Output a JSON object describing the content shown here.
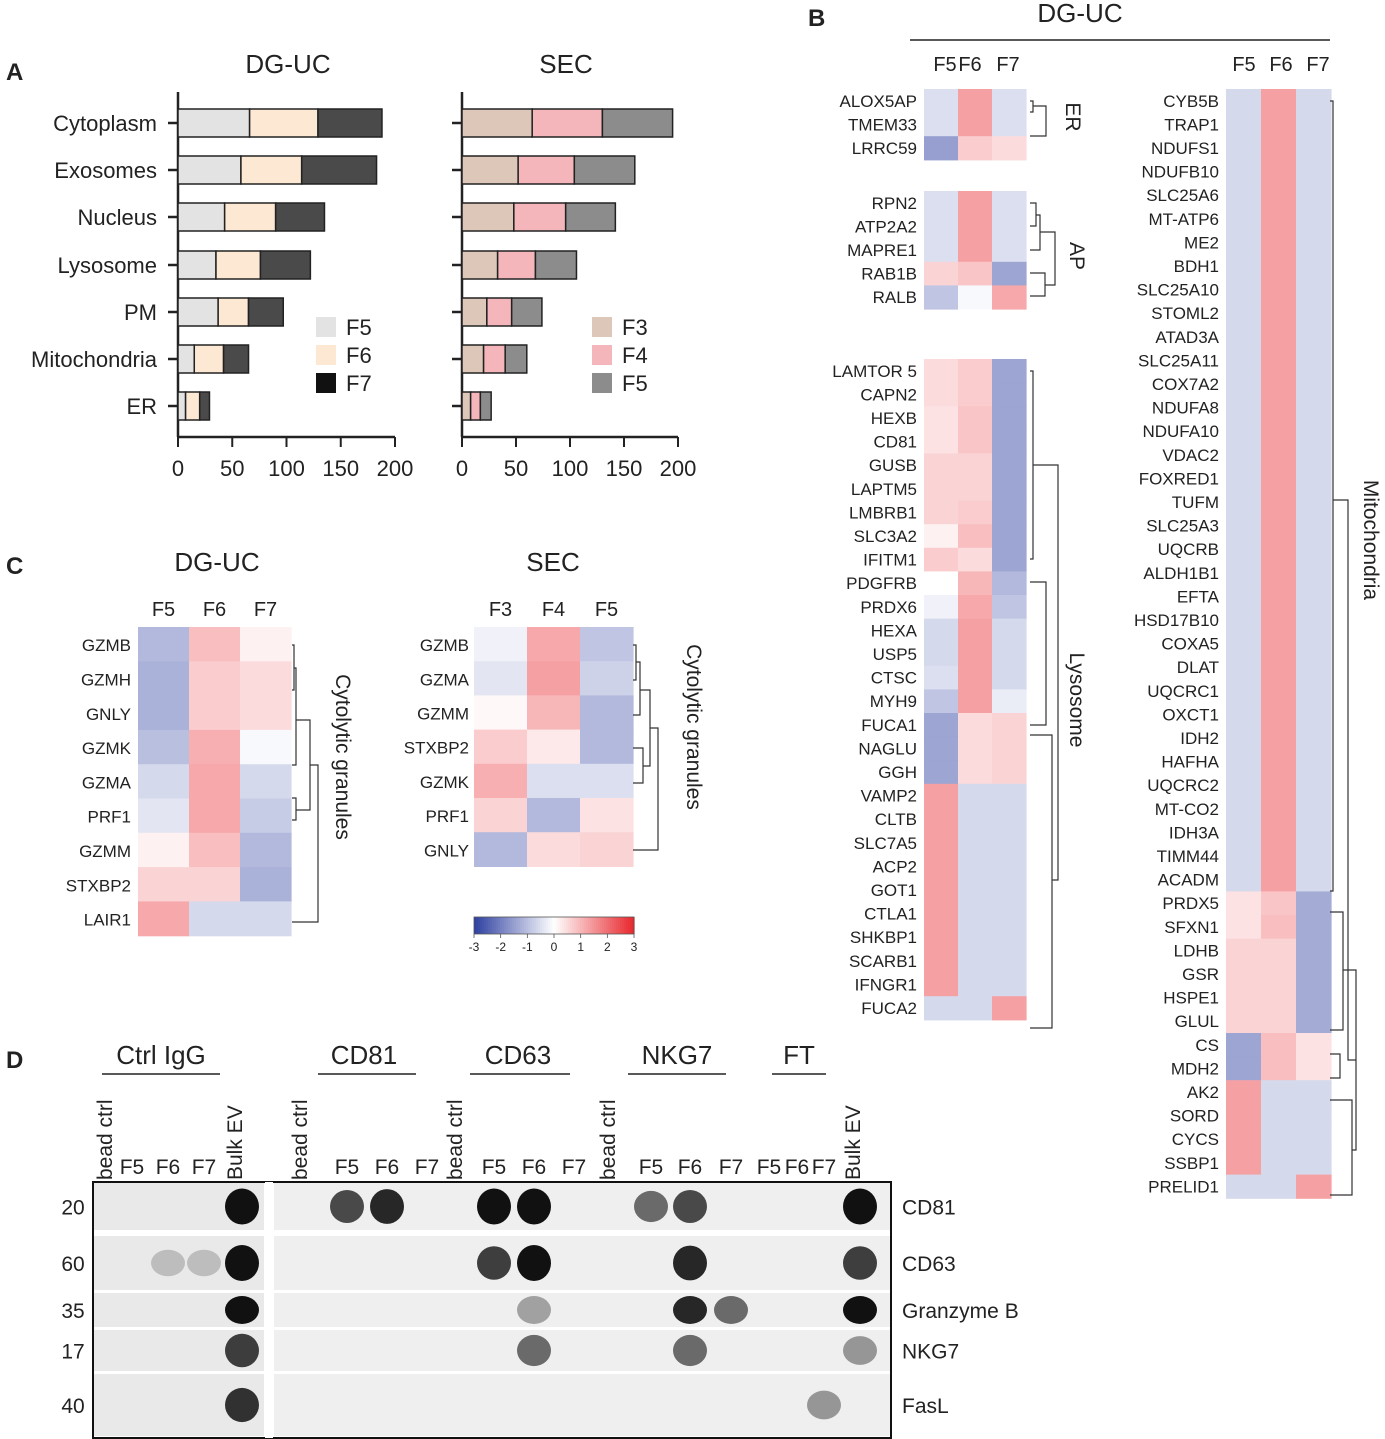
{
  "panel_letters": [
    "A",
    "B",
    "C",
    "D"
  ],
  "colors": {
    "DG-UC": {
      "F5": "#e3e3e3",
      "F6": "#fde8d3",
      "F7": "#4a4a4a"
    },
    "SEC": {
      "F3": "#dcc7b8",
      "F4": "#f4b6ba",
      "F5": "#8c8c8c"
    },
    "heat_low": "#2d3fa0",
    "heat_mid": "#ffffff",
    "heat_high": "#e8262c"
  },
  "panelB": {
    "title": "DG-UC",
    "columns": [
      "F5",
      "F6",
      "F7"
    ],
    "groups": [
      {
        "label": "ER",
        "genes": [
          "ALOX5AP",
          "TMEM33",
          "LRRC59"
        ],
        "values": [
          [
            -0.5,
            1.3,
            -0.5
          ],
          [
            -0.5,
            1.3,
            -0.5
          ],
          [
            -1.5,
            0.7,
            0.5
          ]
        ]
      },
      {
        "label": "AP",
        "genes": [
          "RPN2",
          "ATP2A2",
          "MAPRE1",
          "RAB1B",
          "RALB"
        ],
        "values": [
          [
            -0.5,
            1.3,
            -0.5
          ],
          [
            -0.5,
            1.3,
            -0.5
          ],
          [
            -0.5,
            1.3,
            -0.5
          ],
          [
            0.6,
            0.8,
            -1.4
          ],
          [
            -0.9,
            -0.1,
            1.2
          ]
        ]
      },
      {
        "label": "Lysosome",
        "genes": [
          "LAMTOR 5",
          "CAPN2",
          "HEXB",
          "CD81",
          "GUSB",
          "LAPTM5",
          "LMBRB1",
          "SLC3A2",
          "IFITM1",
          "PDGFRB",
          "PRDX6",
          "HEXA",
          "USP5",
          "CTSC",
          "MYH9",
          "FUCA1",
          "NAGLU",
          "GGH",
          "VAMP2",
          "CLTB",
          "SLC7A5",
          "ACP2",
          "GOT1",
          "CTLA1",
          "SHKBP1",
          "SCARB1",
          "IFNGR1",
          "FUCA2"
        ],
        "values": [
          [
            0.5,
            0.7,
            -1.4
          ],
          [
            0.5,
            0.7,
            -1.4
          ],
          [
            0.4,
            0.8,
            -1.4
          ],
          [
            0.4,
            0.8,
            -1.4
          ],
          [
            0.6,
            0.6,
            -1.4
          ],
          [
            0.6,
            0.6,
            -1.4
          ],
          [
            0.6,
            0.7,
            -1.4
          ],
          [
            0.2,
            0.9,
            -1.4
          ],
          [
            0.7,
            0.5,
            -1.4
          ],
          [
            0,
            1,
            -1.1
          ],
          [
            -0.2,
            1.2,
            -0.9
          ],
          [
            -0.6,
            1.3,
            -0.6
          ],
          [
            -0.6,
            1.3,
            -0.6
          ],
          [
            -0.5,
            1.3,
            -0.6
          ],
          [
            -0.9,
            1.3,
            -0.3
          ],
          [
            -1.4,
            0.5,
            0.6
          ],
          [
            -1.4,
            0.5,
            0.6
          ],
          [
            -1.4,
            0.5,
            0.6
          ],
          [
            1.3,
            -0.6,
            -0.6
          ],
          [
            1.3,
            -0.6,
            -0.6
          ],
          [
            1.3,
            -0.6,
            -0.6
          ],
          [
            1.3,
            -0.6,
            -0.6
          ],
          [
            1.3,
            -0.6,
            -0.6
          ],
          [
            1.3,
            -0.6,
            -0.6
          ],
          [
            1.3,
            -0.6,
            -0.6
          ],
          [
            1.3,
            -0.6,
            -0.6
          ],
          [
            1.3,
            -0.6,
            -0.6
          ],
          [
            -0.6,
            -0.6,
            1.3
          ]
        ]
      },
      {
        "label": "Mitochondria",
        "genes": [
          "CYB5B",
          "TRAP1",
          "NDUFS1",
          "NDUFB10",
          "SLC25A6",
          "MT-ATP6",
          "ME2",
          "BDH1",
          "SLC25A10",
          "STOML2",
          "ATAD3A",
          "SLC25A11",
          "COX7A2",
          "NDUFA8",
          "NDUFA10",
          "VDAC2",
          "FOXRED1",
          "TUFM",
          "SLC25A3",
          "UQCRB",
          "ALDH1B1",
          "EFTA",
          "HSD17B10",
          "COXA5",
          "DLAT",
          "UQCRC1",
          "OXCT1",
          "IDH2",
          "HAFHA",
          "UQCRC2",
          "MT-CO2",
          "IDH3A",
          "TIMM44",
          "ACADM",
          "PRDX5",
          "SFXN1",
          "LDHB",
          "GSR",
          "HSPE1",
          "GLUL",
          "CS",
          "MDH2",
          "AK2",
          "SORD",
          "CYCS",
          "SSBP1",
          "PRELID1"
        ],
        "values": [
          [
            -0.6,
            1.3,
            -0.6
          ],
          [
            -0.6,
            1.3,
            -0.6
          ],
          [
            -0.6,
            1.3,
            -0.6
          ],
          [
            -0.6,
            1.3,
            -0.6
          ],
          [
            -0.6,
            1.3,
            -0.6
          ],
          [
            -0.6,
            1.3,
            -0.6
          ],
          [
            -0.6,
            1.3,
            -0.6
          ],
          [
            -0.6,
            1.3,
            -0.6
          ],
          [
            -0.6,
            1.3,
            -0.6
          ],
          [
            -0.6,
            1.3,
            -0.6
          ],
          [
            -0.6,
            1.3,
            -0.6
          ],
          [
            -0.6,
            1.3,
            -0.6
          ],
          [
            -0.6,
            1.3,
            -0.6
          ],
          [
            -0.6,
            1.3,
            -0.6
          ],
          [
            -0.6,
            1.3,
            -0.6
          ],
          [
            -0.6,
            1.3,
            -0.6
          ],
          [
            -0.6,
            1.3,
            -0.6
          ],
          [
            -0.6,
            1.3,
            -0.6
          ],
          [
            -0.6,
            1.3,
            -0.6
          ],
          [
            -0.6,
            1.3,
            -0.6
          ],
          [
            -0.6,
            1.3,
            -0.6
          ],
          [
            -0.6,
            1.3,
            -0.6
          ],
          [
            -0.6,
            1.3,
            -0.6
          ],
          [
            -0.6,
            1.3,
            -0.6
          ],
          [
            -0.6,
            1.3,
            -0.6
          ],
          [
            -0.6,
            1.3,
            -0.6
          ],
          [
            -0.6,
            1.3,
            -0.6
          ],
          [
            -0.6,
            1.3,
            -0.6
          ],
          [
            -0.6,
            1.3,
            -0.6
          ],
          [
            -0.6,
            1.3,
            -0.6
          ],
          [
            -0.6,
            1.3,
            -0.6
          ],
          [
            -0.6,
            1.3,
            -0.6
          ],
          [
            -0.6,
            1.3,
            -0.6
          ],
          [
            -0.6,
            1.3,
            -0.6
          ],
          [
            0.4,
            0.8,
            -1.3
          ],
          [
            0.4,
            0.9,
            -1.3
          ],
          [
            0.6,
            0.6,
            -1.3
          ],
          [
            0.6,
            0.6,
            -1.3
          ],
          [
            0.6,
            0.6,
            -1.3
          ],
          [
            0.6,
            0.6,
            -1.3
          ],
          [
            -1.4,
            0.9,
            0.4
          ],
          [
            -1.4,
            0.9,
            0.4
          ],
          [
            1.3,
            -0.6,
            -0.6
          ],
          [
            1.3,
            -0.6,
            -0.6
          ],
          [
            1.3,
            -0.6,
            -0.6
          ],
          [
            1.3,
            -0.6,
            -0.6
          ],
          [
            -0.6,
            -0.6,
            1.3
          ]
        ]
      }
    ]
  },
  "panelD": {
    "groups": [
      "Ctrl IgG",
      "CD81",
      "CD63",
      "NKG7",
      "FT"
    ],
    "lanes": [
      "bead ctrl",
      "F5",
      "F6",
      "F7",
      "Bulk EV",
      "bead ctrl",
      "F5",
      "F6",
      "F7",
      "bead ctrl",
      "F5",
      "F6",
      "F7",
      "bead ctrl",
      "F5",
      "F6",
      "F7",
      "F5",
      "F6",
      "F7",
      "Bulk EV"
    ],
    "markers": [
      {
        "kda": "20",
        "protein": "CD81"
      },
      {
        "kda": "60",
        "protein": "CD63"
      },
      {
        "kda": "35",
        "protein": "Granzyme B"
      },
      {
        "kda": "17",
        "protein": "NKG7"
      },
      {
        "kda": "40",
        "protein": "FasL"
      }
    ]
  },
  "chart_data": [
    {
      "id": "A-DG-UC",
      "type": "bar",
      "stacked": true,
      "orientation": "horizontal",
      "title": "DG-UC",
      "categories": [
        "Cytoplasm",
        "Exosomes",
        "Nucleus",
        "Lysosome",
        "PM",
        "Mitochondria",
        "ER"
      ],
      "series": [
        {
          "name": "F5",
          "values": [
            66,
            58,
            43,
            35,
            37,
            15,
            7
          ]
        },
        {
          "name": "F6",
          "values": [
            63,
            56,
            47,
            41,
            28,
            27,
            13
          ]
        },
        {
          "name": "F7",
          "values": [
            59,
            69,
            45,
            46,
            32,
            23,
            9
          ]
        }
      ],
      "xlim": [
        0,
        200
      ],
      "xticks": [
        "0",
        "50",
        "100",
        "150",
        "200"
      ],
      "legend": "bottom-right"
    },
    {
      "id": "A-SEC",
      "type": "bar",
      "stacked": true,
      "orientation": "horizontal",
      "title": "SEC",
      "categories": [
        "Cytoplasm",
        "Exosomes",
        "Nucleus",
        "Lysosome",
        "PM",
        "Mitochondria",
        "ER"
      ],
      "series": [
        {
          "name": "F3",
          "values": [
            65,
            52,
            48,
            33,
            23,
            20,
            8
          ]
        },
        {
          "name": "F4",
          "values": [
            65,
            52,
            48,
            35,
            23,
            20,
            9
          ]
        },
        {
          "name": "F5",
          "values": [
            65,
            56,
            46,
            38,
            28,
            20,
            10
          ]
        }
      ],
      "xlim": [
        0,
        200
      ],
      "xticks": [
        "0",
        "50",
        "100",
        "150",
        "200"
      ],
      "legend": "bottom-right"
    },
    {
      "id": "C-DG-UC",
      "type": "heatmap",
      "title": "DG-UC",
      "cluster_label": "Cytolytic granules",
      "columns": [
        "F5",
        "F6",
        "F7"
      ],
      "rows": [
        "GZMB",
        "GZMH",
        "GNLY",
        "GZMK",
        "GZMA",
        "PRF1",
        "GZMM",
        "STXBP2",
        "LAIR1"
      ],
      "values": [
        [
          -1.1,
          0.9,
          0.2
        ],
        [
          -1.2,
          0.7,
          0.5
        ],
        [
          -1.2,
          0.7,
          0.5
        ],
        [
          -1.0,
          1.1,
          -0.1
        ],
        [
          -0.6,
          1.2,
          -0.6
        ],
        [
          -0.4,
          1.2,
          -0.8
        ],
        [
          0.2,
          0.9,
          -1.1
        ],
        [
          0.6,
          0.6,
          -1.2
        ],
        [
          1.2,
          -0.6,
          -0.6
        ]
      ]
    },
    {
      "id": "C-SEC",
      "type": "heatmap",
      "title": "SEC",
      "cluster_label": "Cytolytic granules",
      "columns": [
        "F3",
        "F4",
        "F5"
      ],
      "rows": [
        "GZMB",
        "GZMA",
        "GZMM",
        "STXBP2",
        "GZMK",
        "PRF1",
        "GNLY"
      ],
      "values": [
        [
          -0.2,
          1.2,
          -0.9
        ],
        [
          -0.4,
          1.3,
          -0.7
        ],
        [
          0.1,
          1.0,
          -1.1
        ],
        [
          0.7,
          0.3,
          -1.1
        ],
        [
          1.1,
          -0.5,
          -0.5
        ],
        [
          0.6,
          -1.1,
          0.4
        ],
        [
          -1.1,
          0.5,
          0.6
        ]
      ],
      "colorbar": {
        "min": -3,
        "max": 3,
        "ticks": [
          "-3",
          "-2",
          "-1",
          "0",
          "1",
          "2",
          "3"
        ]
      }
    }
  ]
}
